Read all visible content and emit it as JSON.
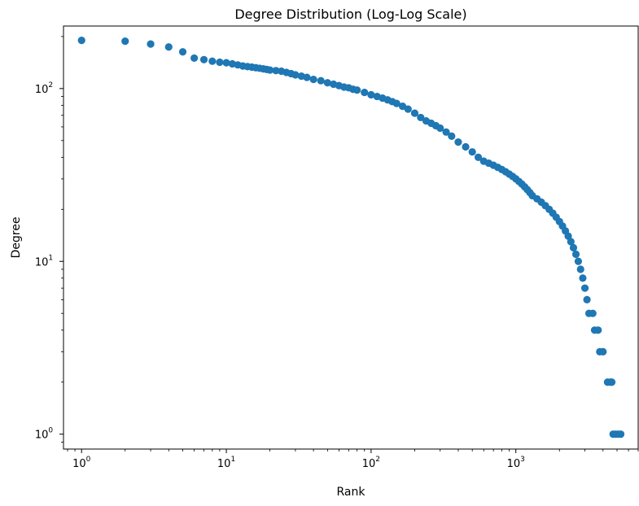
{
  "chart_data": {
    "type": "scatter",
    "title": "Degree Distribution (Log-Log Scale)",
    "xlabel": "Rank",
    "ylabel": "Degree",
    "xscale": "log",
    "yscale": "log",
    "xlim": [
      0.75,
      7000
    ],
    "ylim": [
      0.82,
      230
    ],
    "grid": false,
    "marker_color": "#1f77b4",
    "x_ticks": [
      {
        "value": 1,
        "base": "10",
        "exp": "0"
      },
      {
        "value": 10,
        "base": "10",
        "exp": "1"
      },
      {
        "value": 100,
        "base": "10",
        "exp": "2"
      },
      {
        "value": 1000,
        "base": "10",
        "exp": "3"
      }
    ],
    "y_ticks": [
      {
        "value": 1,
        "base": "10",
        "exp": "0"
      },
      {
        "value": 10,
        "base": "10",
        "exp": "1"
      },
      {
        "value": 100,
        "base": "10",
        "exp": "2"
      }
    ],
    "series": [
      {
        "points": [
          [
            1,
            190
          ],
          [
            2,
            188
          ],
          [
            3,
            181
          ],
          [
            4,
            174
          ],
          [
            5,
            163
          ],
          [
            6,
            150
          ],
          [
            7,
            147
          ],
          [
            8,
            144
          ],
          [
            9,
            142
          ],
          [
            10,
            141
          ],
          [
            11,
            139
          ],
          [
            12,
            137
          ],
          [
            13,
            135
          ],
          [
            14,
            134
          ],
          [
            15,
            133
          ],
          [
            16,
            132
          ],
          [
            17,
            131
          ],
          [
            18,
            130
          ],
          [
            19,
            129
          ],
          [
            20,
            128
          ],
          [
            22,
            127
          ],
          [
            24,
            126
          ],
          [
            26,
            124
          ],
          [
            28,
            122
          ],
          [
            30,
            120
          ],
          [
            33,
            118
          ],
          [
            36,
            116
          ],
          [
            40,
            113
          ],
          [
            45,
            111
          ],
          [
            50,
            108
          ],
          [
            55,
            106
          ],
          [
            60,
            104
          ],
          [
            65,
            102
          ],
          [
            70,
            101
          ],
          [
            75,
            99
          ],
          [
            80,
            98
          ],
          [
            90,
            95
          ],
          [
            100,
            92
          ],
          [
            110,
            90
          ],
          [
            120,
            88
          ],
          [
            130,
            86
          ],
          [
            140,
            84
          ],
          [
            150,
            82
          ],
          [
            165,
            79
          ],
          [
            180,
            76
          ],
          [
            200,
            72
          ],
          [
            220,
            68
          ],
          [
            240,
            65
          ],
          [
            260,
            63
          ],
          [
            280,
            61
          ],
          [
            300,
            59
          ],
          [
            330,
            56
          ],
          [
            360,
            53
          ],
          [
            400,
            49
          ],
          [
            450,
            46
          ],
          [
            500,
            43
          ],
          [
            550,
            40
          ],
          [
            600,
            38
          ],
          [
            650,
            37
          ],
          [
            700,
            36
          ],
          [
            750,
            35
          ],
          [
            800,
            34
          ],
          [
            850,
            33
          ],
          [
            900,
            32
          ],
          [
            950,
            31
          ],
          [
            1000,
            30
          ],
          [
            1050,
            29
          ],
          [
            1100,
            28
          ],
          [
            1150,
            27
          ],
          [
            1200,
            26
          ],
          [
            1250,
            25
          ],
          [
            1300,
            24
          ],
          [
            1400,
            23
          ],
          [
            1500,
            22
          ],
          [
            1600,
            21
          ],
          [
            1700,
            20
          ],
          [
            1800,
            19
          ],
          [
            1900,
            18
          ],
          [
            2000,
            17
          ],
          [
            2100,
            16
          ],
          [
            2200,
            15
          ],
          [
            2300,
            14
          ],
          [
            2400,
            13
          ],
          [
            2500,
            12
          ],
          [
            2600,
            11
          ],
          [
            2700,
            10
          ],
          [
            2800,
            9
          ],
          [
            2900,
            8
          ],
          [
            3000,
            7
          ],
          [
            3100,
            6
          ],
          [
            3200,
            5
          ],
          [
            3400,
            5
          ],
          [
            3500,
            4
          ],
          [
            3700,
            4
          ],
          [
            3800,
            3
          ],
          [
            4000,
            3
          ],
          [
            4300,
            2
          ],
          [
            4500,
            2
          ],
          [
            4600,
            2
          ],
          [
            4700,
            1
          ],
          [
            4900,
            1
          ],
          [
            5100,
            1
          ],
          [
            5300,
            1
          ]
        ]
      }
    ]
  }
}
